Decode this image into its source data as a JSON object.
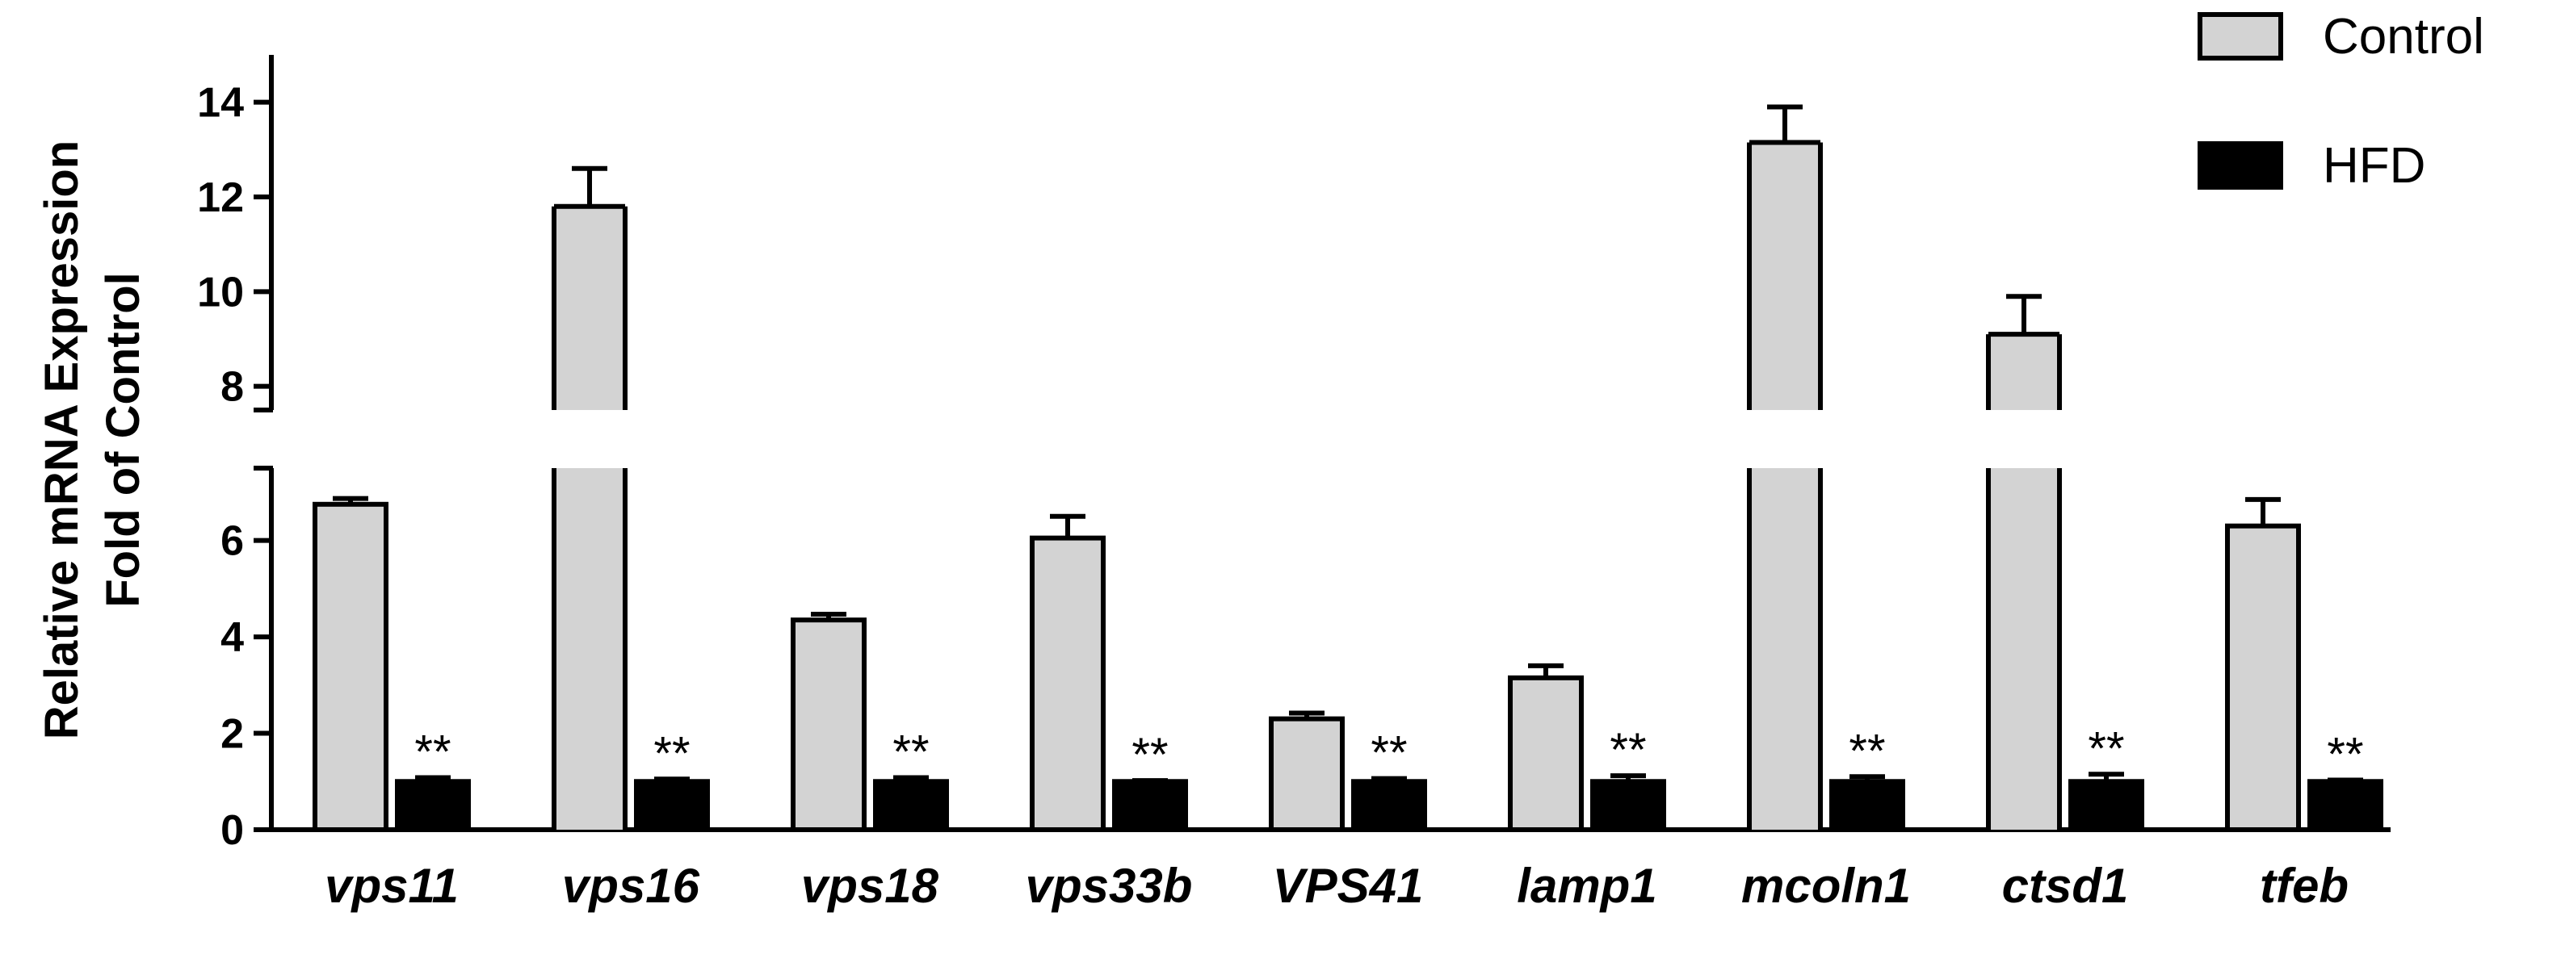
{
  "chart_data": {
    "type": "bar",
    "title": "",
    "xlabel": "",
    "ylabel": [
      "Relative mRNA Expression",
      "Fold of Control"
    ],
    "broken_axis": {
      "lower_range": [
        0,
        7.5
      ],
      "upper_range": [
        7.5,
        15
      ],
      "lower_ticks": [
        "0",
        "2",
        "4",
        "6"
      ],
      "upper_ticks": [
        "8",
        "10",
        "12",
        "14"
      ]
    },
    "categories": [
      "vps11",
      "vps16",
      "vps18",
      "vps33b",
      "VPS41",
      "lamp1",
      "mcoln1",
      "ctsd1",
      "tfeb"
    ],
    "series": [
      {
        "name": "Control",
        "color": "#d3d3d3",
        "values": [
          6.75,
          11.8,
          4.35,
          6.05,
          2.3,
          3.15,
          13.15,
          9.1,
          6.3
        ],
        "errors": [
          0.12,
          0.8,
          0.12,
          0.45,
          0.12,
          0.25,
          0.75,
          0.8,
          0.55
        ]
      },
      {
        "name": "HFD",
        "color": "#000000",
        "values": [
          1.0,
          1.0,
          1.0,
          1.0,
          1.0,
          1.0,
          1.0,
          1.0,
          1.0
        ],
        "errors": [
          0.08,
          0.05,
          0.08,
          0.02,
          0.06,
          0.12,
          0.1,
          0.15,
          0.03
        ]
      }
    ],
    "significance": [
      "**",
      "**",
      "**",
      "**",
      "**",
      "**",
      "**",
      "**",
      "**"
    ],
    "legend": {
      "placement": "top-right",
      "entries": [
        "Control",
        "HFD"
      ]
    },
    "grid": false
  }
}
